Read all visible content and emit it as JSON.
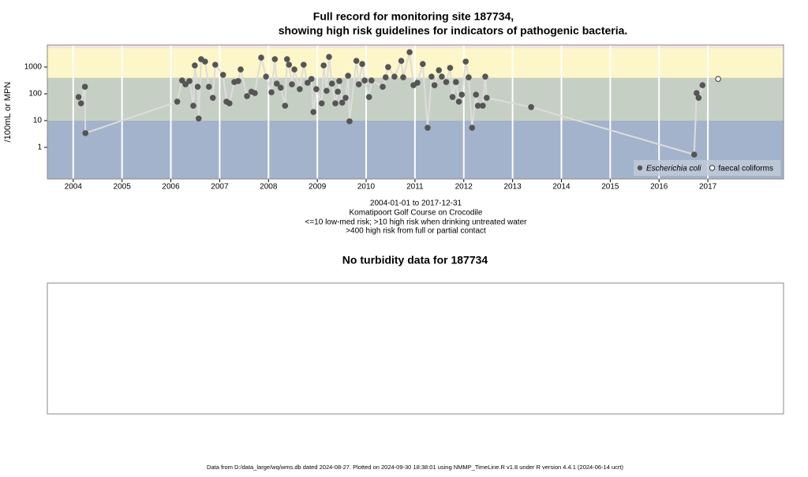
{
  "chart_data": [
    {
      "type": "scatter",
      "title": [
        "Full record for monitoring site 187734,",
        "showing high risk guidelines for indicators of pathogenic bacteria."
      ],
      "y_label": "/100mL or MPN",
      "captions": [
        "2004-01-01 to 2017-12-31",
        "Komatipoort Golf Course on Crocodile",
        "<=10 low-med risk; >10 high risk when drinking untreated water",
        ">400 high risk from full or partial contact"
      ],
      "log_y": true,
      "grid": true,
      "legend": "bottom-right",
      "line_color": "#dcdcdc",
      "bands": [
        {
          "from": 0.066,
          "to": 10,
          "color": "#a3b3cb"
        },
        {
          "from": 10,
          "to": 400,
          "color": "#c6cfc3"
        },
        {
          "from": 400,
          "to": 5000,
          "color": "#fdf6c8"
        },
        {
          "from": 5000,
          "to": 6700,
          "color": "#f4e4e0"
        }
      ],
      "xlim": [
        2003.47,
        2018.55
      ],
      "xticks": [
        2004,
        2005,
        2006,
        2007,
        2008,
        2009,
        2010,
        2011,
        2012,
        2013,
        2014,
        2015,
        2016,
        2017
      ],
      "ylim": [
        0.066,
        6700
      ],
      "yticks": [
        1,
        10,
        100,
        1000
      ],
      "series": [
        {
          "name": "Escherichia coli",
          "color": "#555555",
          "filled": true,
          "x": [
            2004.11,
            2004.16,
            2004.24,
            2004.25,
            2006.13,
            2006.23,
            2006.3,
            2006.38,
            2006.46,
            2006.49,
            2006.55,
            2006.57,
            2006.62,
            2006.7,
            2006.78,
            2006.86,
            2006.91,
            2007.07,
            2007.14,
            2007.2,
            2007.3,
            2007.38,
            2007.43,
            2007.56,
            2007.65,
            2007.72,
            2007.85,
            2007.95,
            2008.06,
            2008.13,
            2008.17,
            2008.25,
            2008.34,
            2008.38,
            2008.42,
            2008.48,
            2008.53,
            2008.64,
            2008.72,
            2008.8,
            2008.88,
            2008.92,
            2008.98,
            2009.09,
            2009.13,
            2009.19,
            2009.24,
            2009.3,
            2009.37,
            2009.42,
            2009.45,
            2009.51,
            2009.58,
            2009.63,
            2009.66,
            2009.8,
            2009.85,
            2009.92,
            2009.97,
            2010.06,
            2010.11,
            2010.34,
            2010.4,
            2010.45,
            2010.58,
            2010.72,
            2010.76,
            2010.89,
            2010.97,
            2011.05,
            2011.16,
            2011.26,
            2011.34,
            2011.4,
            2011.49,
            2011.55,
            2011.64,
            2011.72,
            2011.77,
            2011.84,
            2011.9,
            2011.96,
            2012.04,
            2012.1,
            2012.17,
            2012.25,
            2012.29,
            2012.39,
            2012.44,
            2012.47,
            2013.38,
            2016.72,
            2016.77,
            2016.81,
            2016.89
          ],
          "values": [
            76,
            44,
            184,
            3.4,
            51,
            316,
            226,
            300,
            36,
            1150,
            184,
            12,
            1970,
            1600,
            184,
            71,
            1220,
            510,
            51,
            44,
            275,
            300,
            815,
            82,
            120,
            107,
            2250,
            440,
            114,
            1970,
            240,
            170,
            36,
            1970,
            1220,
            226,
            815,
            150,
            1220,
            260,
            360,
            21,
            150,
            44,
            1150,
            130,
            2400,
            240,
            44,
            120,
            300,
            47,
            71,
            475,
            9.4,
            1700,
            226,
            1300,
            316,
            76,
            316,
            184,
            415,
            1000,
            440,
            1700,
            415,
            3600,
            210,
            260,
            1300,
            5.4,
            440,
            210,
            760,
            440,
            275,
            930,
            76,
            275,
            51,
            93,
            1600,
            415,
            5.4,
            93,
            36,
            36,
            440,
            71,
            32,
            0.54,
            107,
            71,
            210
          ]
        },
        {
          "name": "faecal coliforms",
          "color": "#555555",
          "filled": false,
          "x": [
            2017.21
          ],
          "values": [
            360
          ]
        }
      ]
    },
    {
      "type": "empty",
      "title": "No turbidity data for 187734"
    },
    {
      "footer": "Data from D:/data_large/wq/wms.db dated 2024-08-27. Plotted on 2024-09-30 18:38:01 using NMMP_TimeLine.R v1.8 under R version 4.4.1 (2024-06-14 ucrt)"
    }
  ]
}
